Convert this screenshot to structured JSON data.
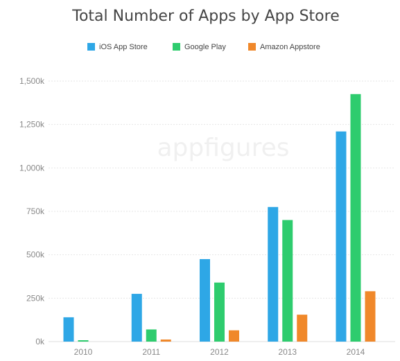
{
  "chart_data": {
    "type": "bar",
    "title": "Total Number of Apps by App Store",
    "watermark": "appfigures",
    "categories": [
      "2010",
      "2011",
      "2012",
      "2013",
      "2014"
    ],
    "series": [
      {
        "name": "iOS App Store",
        "color": "#2ea7e6",
        "values": [
          140,
          275,
          475,
          775,
          1210
        ]
      },
      {
        "name": "Google Play",
        "color": "#2ecc6e",
        "values": [
          8,
          70,
          340,
          700,
          1425
        ]
      },
      {
        "name": "Amazon Appstore",
        "color": "#f0882a",
        "values": [
          0,
          12,
          65,
          155,
          290
        ]
      }
    ],
    "ylim": [
      0,
      1500
    ],
    "yticks": [
      0,
      250,
      500,
      750,
      1000,
      1250,
      1500
    ],
    "ytick_labels": [
      "0k",
      "250k",
      "500k",
      "750k",
      "1,000k",
      "1,250k",
      "1,500k"
    ],
    "grid": true,
    "legend_position": "top-center",
    "xlabel": "",
    "ylabel": ""
  }
}
